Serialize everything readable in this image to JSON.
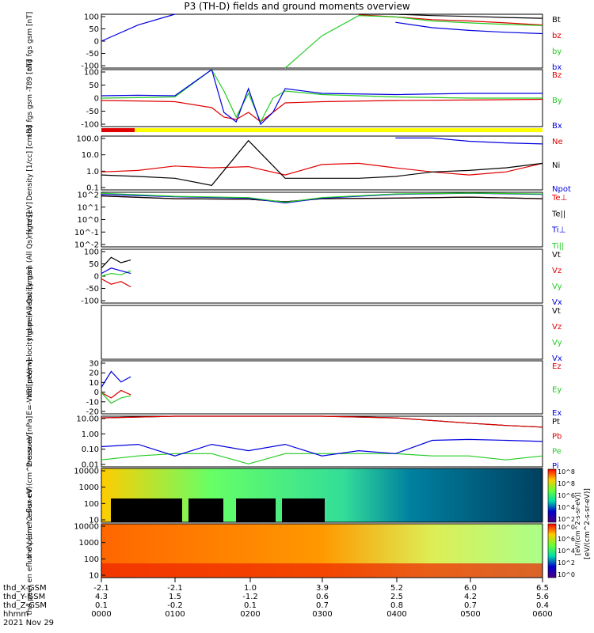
{
  "title": "P3 (TH-D) fields and ground moments overview",
  "date_label": "2021 Nov 29",
  "footer_rows": [
    {
      "label": "thd_X-GSM",
      "values": [
        "-2.1",
        "-2.1",
        "1.0",
        "3.9",
        "5.2",
        "6.0",
        "6.5"
      ]
    },
    {
      "label": "thd_Y-GSM",
      "values": [
        "4.3",
        "1.5",
        "-1.2",
        "0.6",
        "2.5",
        "4.2",
        "5.6"
      ]
    },
    {
      "label": "thd_Z-GSM",
      "values": [
        "0.1",
        "-0.2",
        "0.1",
        "0.7",
        "0.8",
        "0.7",
        "0.4"
      ]
    },
    {
      "label": "hhmm",
      "values": [
        "0000",
        "0100",
        "0200",
        "0300",
        "0400",
        "0500",
        "0600"
      ]
    }
  ],
  "colors": {
    "black": "#000000",
    "red": "#e00000",
    "green": "#22cc22",
    "blue": "#0000e0",
    "yellow": "#ffff00"
  },
  "chart_data": [
    {
      "type": "line",
      "ylabel": "thd fgs gsm [nT]",
      "yticks": [
        "100",
        "50",
        "0",
        "-50",
        "-100"
      ],
      "ylim": [
        -100,
        100
      ],
      "series": [
        {
          "name": "Bt",
          "color": "#000000",
          "x": [
            0,
            30,
            60,
            90,
            120,
            150,
            180,
            210,
            240,
            270,
            300,
            330,
            360
          ],
          "y": [
            null,
            null,
            null,
            null,
            null,
            null,
            null,
            100,
            100,
            95,
            92,
            88,
            85
          ]
        },
        {
          "name": "bz",
          "color": "#e00000",
          "x": [
            0,
            30,
            60,
            90,
            120,
            150,
            180,
            210,
            240,
            270,
            300,
            330,
            360
          ],
          "y": [
            null,
            null,
            null,
            null,
            null,
            null,
            null,
            98,
            90,
            80,
            75,
            68,
            60
          ]
        },
        {
          "name": "by",
          "color": "#22cc22",
          "x": [
            0,
            30,
            60,
            90,
            120,
            150,
            180,
            210,
            240,
            270,
            300,
            330,
            360
          ],
          "y": [
            null,
            null,
            null,
            null,
            null,
            -100,
            20,
            95,
            90,
            75,
            68,
            62,
            58
          ]
        },
        {
          "name": "bx",
          "color": "#0000e0",
          "x": [
            0,
            30,
            60,
            90,
            120,
            150,
            180,
            210,
            240,
            270,
            300,
            330,
            360
          ],
          "y": [
            0,
            60,
            100,
            null,
            null,
            null,
            null,
            null,
            70,
            50,
            40,
            33,
            28
          ]
        }
      ]
    },
    {
      "type": "line",
      "ylabel": "thd fgs gsm -T89 [nT]",
      "yticks": [
        "100",
        "50",
        "0",
        "-50",
        "-100"
      ],
      "ylim": [
        -120,
        120
      ],
      "series": [
        {
          "name": "Bz",
          "color": "#e00000",
          "x": [
            0,
            30,
            60,
            90,
            100,
            110,
            120,
            130,
            140,
            150,
            180,
            240,
            300,
            360
          ],
          "y": [
            -10,
            -12,
            -15,
            -40,
            -80,
            -90,
            -60,
            -100,
            -60,
            -20,
            -15,
            -10,
            -8,
            -5
          ]
        },
        {
          "name": "By",
          "color": "#22cc22",
          "x": [
            0,
            30,
            60,
            90,
            100,
            110,
            120,
            130,
            140,
            150,
            180,
            240,
            300,
            360
          ],
          "y": [
            0,
            2,
            5,
            120,
            30,
            -80,
            20,
            -100,
            0,
            30,
            15,
            5,
            0,
            0
          ]
        },
        {
          "name": "Bx",
          "color": "#0000e0",
          "x": [
            0,
            30,
            60,
            90,
            100,
            110,
            120,
            130,
            140,
            150,
            180,
            240,
            300,
            360
          ],
          "y": [
            10,
            12,
            10,
            120,
            -60,
            -100,
            40,
            -110,
            -60,
            40,
            20,
            15,
            20,
            20
          ]
        }
      ]
    },
    {
      "type": "line",
      "ylabel": "Density [1/cc] [cm-3]",
      "yscale": "log",
      "yticks": [
        "100.0",
        "10.0",
        "1.0",
        "0.1"
      ],
      "ylim": [
        0.05,
        200
      ],
      "series": [
        {
          "name": "Ne",
          "color": "#e00000",
          "x": [
            0,
            30,
            60,
            90,
            120,
            150,
            180,
            210,
            240,
            270,
            300,
            330,
            360
          ],
          "y": [
            0.8,
            1.0,
            2.0,
            1.5,
            1.8,
            0.5,
            2.5,
            3.0,
            1.5,
            0.8,
            0.5,
            0.8,
            3.0
          ]
        },
        {
          "name": "Ni",
          "color": "#000000",
          "x": [
            0,
            30,
            60,
            90,
            120,
            150,
            180,
            210,
            240,
            270,
            300,
            330,
            360
          ],
          "y": [
            0.5,
            0.4,
            0.3,
            0.1,
            100,
            0.3,
            0.3,
            0.3,
            0.4,
            0.8,
            1.0,
            1.5,
            3.0
          ]
        },
        {
          "name": "Npot",
          "color": "#0000e0",
          "x": [
            0,
            30,
            60,
            90,
            120,
            150,
            180,
            210,
            240,
            270,
            300,
            330,
            360
          ],
          "y": [
            null,
            null,
            null,
            null,
            null,
            null,
            null,
            null,
            150,
            150,
            90,
            70,
            60
          ]
        }
      ]
    },
    {
      "type": "line",
      "ylabel": "mgtz [eV]",
      "yscale": "log",
      "yticks": [
        "10^2",
        "10^1",
        "10^0",
        "10^-1",
        "10^-2"
      ],
      "ylim": [
        0.01,
        300
      ],
      "series": [
        {
          "name": "Te⊥",
          "color": "#e00000",
          "x": [
            0,
            60,
            120,
            150,
            180,
            240,
            300,
            360
          ],
          "y": [
            150,
            90,
            80,
            50,
            90,
            100,
            120,
            90
          ]
        },
        {
          "name": "Te||",
          "color": "#000000",
          "x": [
            0,
            60,
            120,
            150,
            180,
            240,
            300,
            360
          ],
          "y": [
            150,
            90,
            80,
            50,
            90,
            100,
            120,
            90
          ]
        },
        {
          "name": "Ti⊥",
          "color": "#0000e0",
          "x": [
            0,
            60,
            120,
            150,
            180,
            240,
            300,
            360
          ],
          "y": [
            200,
            130,
            100,
            40,
            100,
            200,
            250,
            200
          ]
        },
        {
          "name": "Ti||",
          "color": "#22cc22",
          "x": [
            0,
            60,
            120,
            150,
            180,
            240,
            300,
            360
          ],
          "y": [
            250,
            140,
            110,
            45,
            110,
            220,
            260,
            220
          ]
        }
      ]
    },
    {
      "type": "line",
      "ylabel": "thd peir velocity gsm (All Qs) [km/s]",
      "yticks": [
        "100",
        "50",
        "0",
        "-50",
        "-100"
      ],
      "ylim": [
        -100,
        100
      ],
      "series": [
        {
          "name": "Vt",
          "color": "#000000",
          "x": [
            0,
            8,
            16,
            24
          ],
          "y": [
            30,
            70,
            50,
            60
          ]
        },
        {
          "name": "Vz",
          "color": "#e00000",
          "x": [
            0,
            8,
            16,
            24
          ],
          "y": [
            -10,
            -30,
            -20,
            -40
          ]
        },
        {
          "name": "Vy",
          "color": "#22cc22",
          "x": [
            0,
            8,
            16,
            24
          ],
          "y": [
            0,
            10,
            5,
            20
          ]
        },
        {
          "name": "Vx",
          "color": "#0000e0",
          "x": [
            0,
            8,
            16,
            24
          ],
          "y": [
            10,
            30,
            20,
            10
          ]
        }
      ]
    },
    {
      "type": "line",
      "ylabel": "thd peer velocity gsm (All Qs) [km/s]",
      "yticks": [],
      "series": [
        {
          "name": "Vt",
          "color": "#000000",
          "x": [],
          "y": []
        },
        {
          "name": "Vz",
          "color": "#e00000",
          "x": [],
          "y": []
        },
        {
          "name": "Vy",
          "color": "#22cc22",
          "x": [],
          "y": []
        },
        {
          "name": "Vx",
          "color": "#0000e0",
          "x": [],
          "y": []
        }
      ]
    },
    {
      "type": "line",
      "ylabel": "E=-VxB [mV/m]",
      "yticks": [
        "30",
        "20",
        "10",
        "0",
        "-10",
        "-20"
      ],
      "ylim": [
        -20,
        30
      ],
      "series": [
        {
          "name": "Ez",
          "color": "#e00000",
          "x": [
            0,
            8,
            16,
            24
          ],
          "y": [
            0,
            -5,
            2,
            -2
          ]
        },
        {
          "name": "Ey",
          "color": "#22cc22",
          "x": [
            0,
            8,
            16,
            24
          ],
          "y": [
            0,
            -10,
            -5,
            -3
          ]
        },
        {
          "name": "Ex",
          "color": "#0000e0",
          "x": [
            0,
            8,
            16,
            24
          ],
          "y": [
            5,
            20,
            10,
            15
          ]
        }
      ]
    },
    {
      "type": "line",
      "ylabel": "Pressure [nPa]",
      "yscale": "log",
      "yticks": [
        "10.00",
        "1.00",
        "0.10",
        "0.01"
      ],
      "ylim": [
        0.003,
        20
      ],
      "series": [
        {
          "name": "Pt",
          "color": "#000000",
          "x": [
            0,
            60,
            120,
            180,
            240,
            300,
            330,
            360
          ],
          "y": [
            15,
            25,
            30,
            30,
            15,
            6,
            4,
            3
          ]
        },
        {
          "name": "Pb",
          "color": "#e00000",
          "x": [
            0,
            60,
            120,
            180,
            240,
            300,
            330,
            360
          ],
          "y": [
            15,
            25,
            30,
            30,
            15,
            6,
            4,
            3
          ]
        },
        {
          "name": "Pe",
          "color": "#22cc22",
          "x": [
            0,
            30,
            60,
            90,
            120,
            150,
            180,
            210,
            240,
            270,
            300,
            330,
            360
          ],
          "y": [
            0.01,
            0.02,
            0.03,
            0.03,
            0.005,
            0.03,
            0.03,
            0.03,
            0.03,
            0.02,
            0.02,
            0.01,
            0.02
          ]
        },
        {
          "name": "Pi",
          "color": "#0000e0",
          "x": [
            0,
            30,
            60,
            90,
            120,
            150,
            180,
            210,
            240,
            270,
            300,
            330,
            360
          ],
          "y": [
            0.1,
            0.15,
            0.02,
            0.15,
            0.05,
            0.15,
            0.02,
            0.05,
            0.03,
            0.3,
            0.35,
            0.3,
            0.25
          ]
        }
      ]
    },
    {
      "type": "heatmap",
      "ylabel": "thd peir en eflux eV (cm^2-s-sr-eV)",
      "yscale": "log",
      "yticks": [
        "10000",
        "1000",
        "100",
        "10"
      ]
    },
    {
      "type": "heatmap",
      "ylabel": "thd peer en eflux eV (cm^2-s-sr-eV)",
      "yscale": "log",
      "yticks": [
        "10000",
        "1000",
        "100",
        "10"
      ]
    }
  ],
  "colorbar": {
    "ticks": [
      "10^8",
      "10^8",
      "10^6",
      "10^4",
      "10^2",
      "10^0",
      "10^6",
      "10^4",
      "10^2",
      "10^0"
    ],
    "label": "[eV/(cm^2-s-sr-eV)]",
    "label_top": "[eV/(cm^2-s-sr-eV)]"
  }
}
